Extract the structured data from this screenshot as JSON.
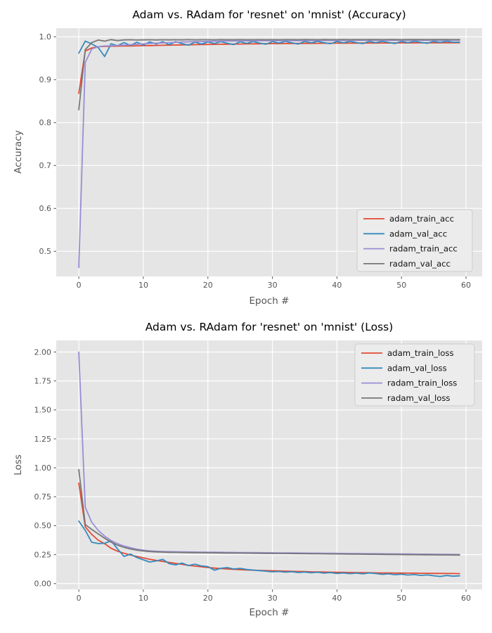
{
  "figure": {
    "background": "#ffffff",
    "plot_background": "#e5e5e5",
    "grid_color": "#ffffff",
    "tick_label_color": "#555555",
    "axis_label_color": "#555555",
    "title_color": "#000000",
    "legend_background": "#ececec",
    "legend_border": "#cccccc",
    "legend_text_color": "#111111"
  },
  "epochs": [
    0,
    1,
    2,
    3,
    4,
    5,
    6,
    7,
    8,
    9,
    10,
    11,
    12,
    13,
    14,
    15,
    16,
    17,
    18,
    19,
    20,
    21,
    22,
    23,
    24,
    25,
    26,
    27,
    28,
    29,
    30,
    31,
    32,
    33,
    34,
    35,
    36,
    37,
    38,
    39,
    40,
    41,
    42,
    43,
    44,
    45,
    46,
    47,
    48,
    49,
    50,
    51,
    52,
    53,
    54,
    55,
    56,
    57,
    58,
    59
  ],
  "chart_data": [
    {
      "type": "line",
      "title": "Adam vs. RAdam for 'resnet' on 'mnist' (Accuracy)",
      "xlabel": "Epoch #",
      "ylabel": "Accuracy",
      "grid": true,
      "legend_position": "lower right",
      "xlim": [
        -3.5,
        62.5
      ],
      "ylim": [
        0.4415,
        1.0202
      ],
      "xticks": [
        0,
        10,
        20,
        30,
        40,
        50,
        60
      ],
      "yticks": [
        0.5,
        0.6,
        0.7,
        0.8,
        0.9,
        1.0
      ],
      "ytick_decimals": 1,
      "series": [
        {
          "name": "adam_train_acc",
          "color": "#e24a33",
          "values": [
            0.868,
            0.967,
            0.974,
            0.977,
            0.9775,
            0.978,
            0.9782,
            0.9785,
            0.9788,
            0.979,
            0.9793,
            0.9796,
            0.9799,
            0.9802,
            0.9805,
            0.9808,
            0.9811,
            0.9814,
            0.9817,
            0.982,
            0.9822,
            0.9824,
            0.9826,
            0.9828,
            0.983,
            0.9832,
            0.9834,
            0.9836,
            0.9838,
            0.984,
            0.9841,
            0.9842,
            0.9843,
            0.9844,
            0.9845,
            0.9846,
            0.9847,
            0.9848,
            0.9849,
            0.985,
            0.9851,
            0.9852,
            0.9852,
            0.9853,
            0.9854,
            0.9854,
            0.9855,
            0.9856,
            0.9856,
            0.9857,
            0.9857,
            0.9858,
            0.9858,
            0.9859,
            0.9859,
            0.986,
            0.986,
            0.9861,
            0.9861,
            0.9862
          ]
        },
        {
          "name": "adam_val_acc",
          "color": "#348abd",
          "values": [
            0.962,
            0.99,
            0.9835,
            0.975,
            0.954,
            0.9838,
            0.979,
            0.9865,
            0.9798,
            0.9872,
            0.9806,
            0.988,
            0.9832,
            0.9885,
            0.9815,
            0.9886,
            0.984,
            0.9806,
            0.9875,
            0.9832,
            0.988,
            0.9842,
            0.9888,
            0.985,
            0.9818,
            0.9885,
            0.9846,
            0.989,
            0.9852,
            0.9826,
            0.9888,
            0.9855,
            0.9892,
            0.986,
            0.9832,
            0.989,
            0.9858,
            0.9893,
            0.9862,
            0.9838,
            0.9891,
            0.986,
            0.9894,
            0.9864,
            0.9842,
            0.9893,
            0.9862,
            0.9895,
            0.9868,
            0.9845,
            0.9894,
            0.9865,
            0.9896,
            0.987,
            0.985,
            0.9895,
            0.9868,
            0.9897,
            0.9872,
            0.9875
          ]
        },
        {
          "name": "radam_train_acc",
          "color": "#988ed5",
          "values": [
            0.462,
            0.94,
            0.9715,
            0.977,
            0.9785,
            0.979,
            0.9798,
            0.9806,
            0.9815,
            0.9825,
            0.9835,
            0.9843,
            0.9851,
            0.9858,
            0.9865,
            0.9871,
            0.9877,
            0.9882,
            0.9887,
            0.9891,
            0.9894,
            0.9896,
            0.9898,
            0.99,
            0.9902,
            0.9903,
            0.9905,
            0.9906,
            0.9907,
            0.9908,
            0.9909,
            0.991,
            0.991,
            0.9911,
            0.9911,
            0.9912,
            0.9912,
            0.9913,
            0.9913,
            0.9914,
            0.9914,
            0.9915,
            0.9915,
            0.9915,
            0.9916,
            0.9916,
            0.9916,
            0.9917,
            0.9917,
            0.9917,
            0.9918,
            0.9918,
            0.9918,
            0.9918,
            0.9919,
            0.9919,
            0.9919,
            0.9919,
            0.992,
            0.992
          ]
        },
        {
          "name": "radam_val_acc",
          "color": "#777777",
          "values": [
            0.83,
            0.97,
            0.9865,
            0.9925,
            0.9898,
            0.9935,
            0.9912,
            0.9928,
            0.9932,
            0.9925,
            0.9929,
            0.9931,
            0.9926,
            0.9931,
            0.9928,
            0.9932,
            0.9929,
            0.9933,
            0.993,
            0.9931,
            0.9932,
            0.993,
            0.9933,
            0.9931,
            0.9932,
            0.9933,
            0.9931,
            0.9932,
            0.9933,
            0.9932,
            0.9933,
            0.9932,
            0.9933,
            0.9933,
            0.9932,
            0.9934,
            0.9933,
            0.9932,
            0.9934,
            0.9933,
            0.9933,
            0.9934,
            0.9933,
            0.9934,
            0.9933,
            0.9934,
            0.9934,
            0.9933,
            0.9934,
            0.9934,
            0.9933,
            0.9934,
            0.9934,
            0.9934,
            0.9933,
            0.9934,
            0.9934,
            0.9934,
            0.9933,
            0.9934
          ]
        }
      ]
    },
    {
      "type": "line",
      "title": "Adam vs. RAdam for 'resnet' on 'mnist' (Loss)",
      "xlabel": "Epoch #",
      "ylabel": "Loss",
      "grid": true,
      "legend_position": "upper right",
      "xlim": [
        -3.5,
        62.5
      ],
      "ylim": [
        -0.05,
        2.1
      ],
      "xticks": [
        0,
        10,
        20,
        30,
        40,
        50,
        60
      ],
      "yticks": [
        0.0,
        0.25,
        0.5,
        0.75,
        1.0,
        1.25,
        1.5,
        1.75,
        2.0
      ],
      "ytick_decimals": 2,
      "series": [
        {
          "name": "adam_train_loss",
          "color": "#e24a33",
          "values": [
            0.868,
            0.49,
            0.425,
            0.375,
            0.345,
            0.305,
            0.28,
            0.262,
            0.247,
            0.235,
            0.222,
            0.21,
            0.2,
            0.192,
            0.183,
            0.175,
            0.166,
            0.158,
            0.151,
            0.145,
            0.139,
            0.134,
            0.13,
            0.126,
            0.123,
            0.12,
            0.118,
            0.116,
            0.114,
            0.112,
            0.111,
            0.109,
            0.108,
            0.106,
            0.105,
            0.104,
            0.102,
            0.101,
            0.1,
            0.099,
            0.098,
            0.097,
            0.096,
            0.095,
            0.094,
            0.094,
            0.093,
            0.092,
            0.092,
            0.091,
            0.091,
            0.09,
            0.09,
            0.089,
            0.089,
            0.088,
            0.088,
            0.087,
            0.087,
            0.086
          ]
        },
        {
          "name": "adam_val_loss",
          "color": "#348abd",
          "values": [
            0.54,
            0.46,
            0.357,
            0.346,
            0.348,
            0.37,
            0.3,
            0.235,
            0.255,
            0.225,
            0.205,
            0.186,
            0.196,
            0.21,
            0.172,
            0.162,
            0.177,
            0.156,
            0.168,
            0.152,
            0.147,
            0.116,
            0.132,
            0.138,
            0.126,
            0.131,
            0.122,
            0.117,
            0.112,
            0.107,
            0.102,
            0.105,
            0.099,
            0.103,
            0.096,
            0.1,
            0.094,
            0.098,
            0.091,
            0.095,
            0.088,
            0.092,
            0.086,
            0.09,
            0.084,
            0.092,
            0.087,
            0.08,
            0.084,
            0.077,
            0.081,
            0.074,
            0.078,
            0.071,
            0.075,
            0.068,
            0.062,
            0.07,
            0.064,
            0.067
          ]
        },
        {
          "name": "radam_train_loss",
          "color": "#988ed5",
          "values": [
            2.0,
            0.66,
            0.53,
            0.46,
            0.41,
            0.372,
            0.345,
            0.325,
            0.31,
            0.297,
            0.288,
            0.283,
            0.279,
            0.277,
            0.2758,
            0.2748,
            0.274,
            0.2732,
            0.2725,
            0.2718,
            0.2712,
            0.2706,
            0.27,
            0.2695,
            0.269,
            0.2685,
            0.268,
            0.2675,
            0.267,
            0.2665,
            0.266,
            0.2655,
            0.265,
            0.2645,
            0.264,
            0.2635,
            0.263,
            0.2625,
            0.262,
            0.2615,
            0.261,
            0.2605,
            0.26,
            0.2595,
            0.259,
            0.2585,
            0.258,
            0.2575,
            0.257,
            0.2565,
            0.256,
            0.2555,
            0.255,
            0.2545,
            0.254,
            0.2535,
            0.253,
            0.2525,
            0.252,
            0.2515
          ]
        },
        {
          "name": "radam_val_loss",
          "color": "#777777",
          "values": [
            0.985,
            0.51,
            0.468,
            0.43,
            0.392,
            0.358,
            0.332,
            0.313,
            0.299,
            0.289,
            0.282,
            0.277,
            0.2735,
            0.2716,
            0.2702,
            0.2692,
            0.2684,
            0.2677,
            0.267,
            0.2664,
            0.2658,
            0.2652,
            0.2647,
            0.2642,
            0.2637,
            0.2632,
            0.2627,
            0.2622,
            0.2617,
            0.2612,
            0.2607,
            0.2602,
            0.2597,
            0.2592,
            0.2588,
            0.2583,
            0.2578,
            0.2573,
            0.2568,
            0.2563,
            0.2558,
            0.2553,
            0.2548,
            0.2543,
            0.2538,
            0.2533,
            0.2528,
            0.2523,
            0.2518,
            0.2513,
            0.2508,
            0.2503,
            0.2498,
            0.2493,
            0.2488,
            0.2483,
            0.2478,
            0.2473,
            0.2468,
            0.2463
          ]
        }
      ]
    }
  ]
}
